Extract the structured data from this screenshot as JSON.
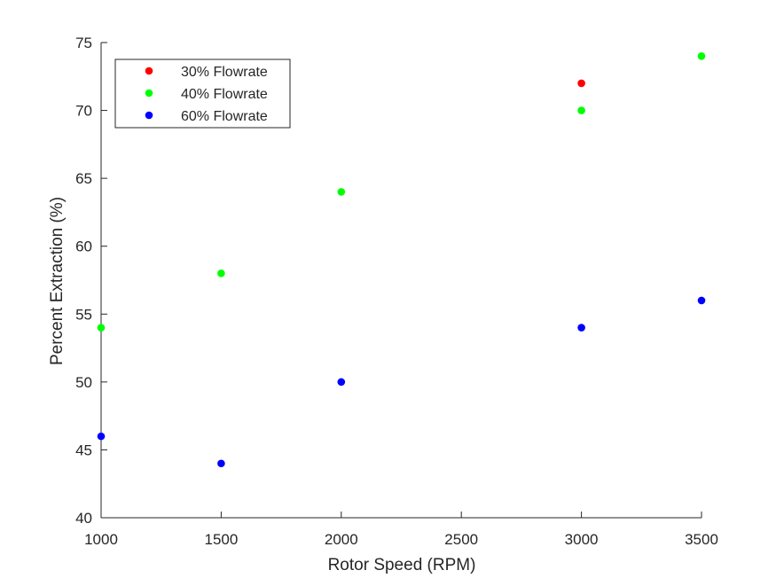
{
  "chart_data": {
    "type": "scatter",
    "xlabel": "Rotor Speed (RPM)",
    "ylabel": "Percent Extraction (%)",
    "xlim": [
      1000,
      3500
    ],
    "ylim": [
      40,
      75
    ],
    "xticks": [
      1000,
      1500,
      2000,
      2500,
      3000,
      3500
    ],
    "yticks": [
      40,
      45,
      50,
      55,
      60,
      65,
      70,
      75
    ],
    "grid": false,
    "legend": "top-left",
    "series": [
      {
        "name": "30% Flowrate",
        "color": "#ff0000",
        "points": [
          [
            3000,
            72
          ]
        ]
      },
      {
        "name": "40% Flowrate",
        "color": "#00ff00",
        "points": [
          [
            1000,
            54
          ],
          [
            1500,
            58
          ],
          [
            2000,
            64
          ],
          [
            3000,
            70
          ],
          [
            3500,
            74
          ]
        ]
      },
      {
        "name": "60% Flowrate",
        "color": "#0000ff",
        "points": [
          [
            1000,
            46
          ],
          [
            1500,
            44
          ],
          [
            2000,
            50
          ],
          [
            3000,
            54
          ],
          [
            3500,
            56
          ]
        ]
      }
    ]
  }
}
